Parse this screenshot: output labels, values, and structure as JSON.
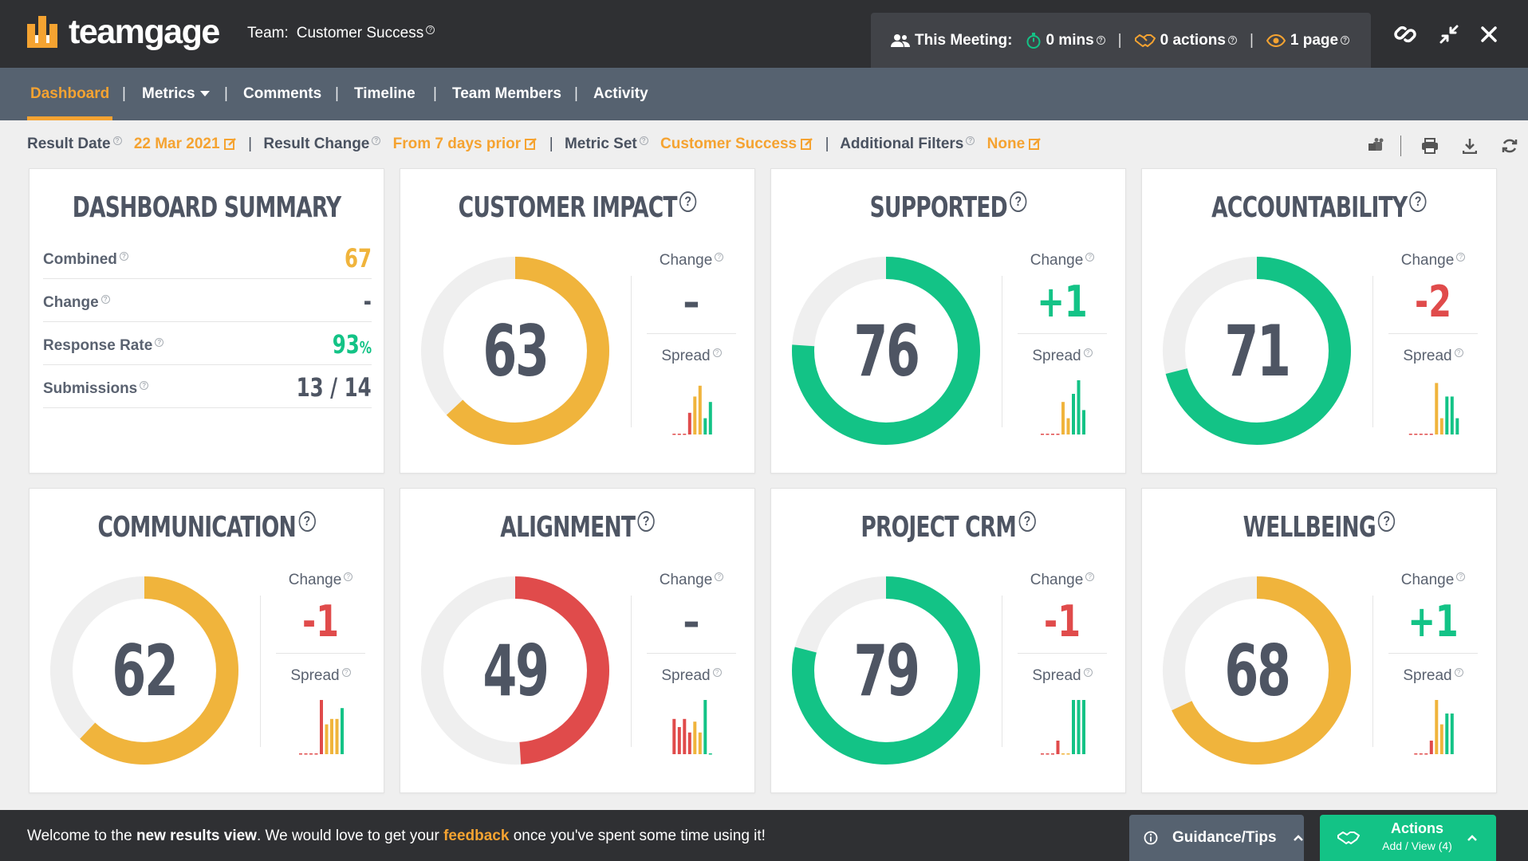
{
  "header": {
    "logo_text": "teamgage",
    "team_label": "Team:",
    "team_name": "Customer Success",
    "meeting": {
      "label": "This Meeting:",
      "mins": "0 mins",
      "actions": "0 actions",
      "pages": "1 page"
    }
  },
  "nav": {
    "tabs": [
      "Dashboard",
      "Metrics",
      "Comments",
      "Timeline",
      "Team Members",
      "Activity"
    ],
    "active": "Dashboard"
  },
  "filters": {
    "result_date_label": "Result Date",
    "result_date_value": "22 Mar 2021",
    "result_change_label": "Result Change",
    "result_change_value": "From 7 days prior",
    "metric_set_label": "Metric Set",
    "metric_set_value": "Customer Success",
    "additional_filters_label": "Additional Filters",
    "additional_filters_value": "None"
  },
  "summary": {
    "title": "DASHBOARD SUMMARY",
    "rows": [
      {
        "label": "Combined",
        "value": "67",
        "color": "#f0b43c"
      },
      {
        "label": "Change",
        "value": "-",
        "color": "#4e5563"
      },
      {
        "label": "Response Rate",
        "value": "93",
        "unit": "%",
        "color": "#13c386"
      },
      {
        "label": "Submissions",
        "value": "13 / 14",
        "color": "#4e5563"
      }
    ]
  },
  "labels": {
    "change": "Change",
    "spread": "Spread"
  },
  "metrics": [
    {
      "title": "CUSTOMER IMPACT",
      "score": 63,
      "change": "–",
      "color": "#f0b43c",
      "change_color": "#4e5563",
      "spread": [
        {
          "v": 0.0,
          "c": "#e04b4b"
        },
        {
          "v": 0.0,
          "c": "#e04b4b"
        },
        {
          "v": 0.0,
          "c": "#e04b4b"
        },
        {
          "v": 0.4,
          "c": "#e04b4b"
        },
        {
          "v": 0.7,
          "c": "#f0b43c"
        },
        {
          "v": 0.9,
          "c": "#f0b43c"
        },
        {
          "v": 0.3,
          "c": "#13c386"
        },
        {
          "v": 0.6,
          "c": "#13c386"
        }
      ]
    },
    {
      "title": "SUPPORTED",
      "score": 76,
      "change": "+1",
      "color": "#13c386",
      "change_color": "#13c386",
      "spread": [
        {
          "v": 0.0,
          "c": "#e04b4b"
        },
        {
          "v": 0.0,
          "c": "#e04b4b"
        },
        {
          "v": 0.0,
          "c": "#e04b4b"
        },
        {
          "v": 0.0,
          "c": "#e04b4b"
        },
        {
          "v": 0.6,
          "c": "#f0b43c"
        },
        {
          "v": 0.3,
          "c": "#f0b43c"
        },
        {
          "v": 0.75,
          "c": "#13c386"
        },
        {
          "v": 1.0,
          "c": "#13c386"
        },
        {
          "v": 0.45,
          "c": "#13c386"
        }
      ]
    },
    {
      "title": "ACCOUNTABILITY",
      "score": 71,
      "change": "-2",
      "color": "#13c386",
      "change_color": "#e04b4b",
      "spread": [
        {
          "v": 0.0,
          "c": "#e04b4b"
        },
        {
          "v": 0.0,
          "c": "#e04b4b"
        },
        {
          "v": 0.0,
          "c": "#e04b4b"
        },
        {
          "v": 0.0,
          "c": "#e04b4b"
        },
        {
          "v": 0.0,
          "c": "#e04b4b"
        },
        {
          "v": 0.95,
          "c": "#f0b43c"
        },
        {
          "v": 0.3,
          "c": "#f0b43c"
        },
        {
          "v": 0.7,
          "c": "#13c386"
        },
        {
          "v": 0.7,
          "c": "#13c386"
        },
        {
          "v": 0.3,
          "c": "#13c386"
        }
      ]
    },
    {
      "title": "COMMUNICATION",
      "score": 62,
      "change": "-1",
      "color": "#f0b43c",
      "change_color": "#e04b4b",
      "spread": [
        {
          "v": 0.0,
          "c": "#e04b4b"
        },
        {
          "v": 0.0,
          "c": "#e04b4b"
        },
        {
          "v": 0.0,
          "c": "#e04b4b"
        },
        {
          "v": 0.0,
          "c": "#e04b4b"
        },
        {
          "v": 1.0,
          "c": "#e04b4b"
        },
        {
          "v": 0.55,
          "c": "#f0b43c"
        },
        {
          "v": 0.65,
          "c": "#f0b43c"
        },
        {
          "v": 0.65,
          "c": "#f0b43c"
        },
        {
          "v": 0.85,
          "c": "#13c386"
        }
      ]
    },
    {
      "title": "ALIGNMENT",
      "score": 49,
      "change": "–",
      "color": "#e04b4b",
      "change_color": "#4e5563",
      "spread": [
        {
          "v": 0.65,
          "c": "#e04b4b"
        },
        {
          "v": 0.5,
          "c": "#e04b4b"
        },
        {
          "v": 0.65,
          "c": "#e04b4b"
        },
        {
          "v": 0.4,
          "c": "#e04b4b"
        },
        {
          "v": 0.6,
          "c": "#f0b43c"
        },
        {
          "v": 0.4,
          "c": "#f0b43c"
        },
        {
          "v": 1.0,
          "c": "#13c386"
        },
        {
          "v": 0.0,
          "c": "#13c386"
        }
      ]
    },
    {
      "title": "PROJECT CRM",
      "score": 79,
      "change": "-1",
      "color": "#13c386",
      "change_color": "#e04b4b",
      "spread": [
        {
          "v": 0.0,
          "c": "#e04b4b"
        },
        {
          "v": 0.0,
          "c": "#e04b4b"
        },
        {
          "v": 0.0,
          "c": "#e04b4b"
        },
        {
          "v": 0.25,
          "c": "#e04b4b"
        },
        {
          "v": 0.0,
          "c": "#f0b43c"
        },
        {
          "v": 0.0,
          "c": "#f0b43c"
        },
        {
          "v": 1.0,
          "c": "#13c386"
        },
        {
          "v": 1.0,
          "c": "#13c386"
        },
        {
          "v": 1.0,
          "c": "#13c386"
        }
      ]
    },
    {
      "title": "WELLBEING",
      "score": 68,
      "change": "+1",
      "color": "#f0b43c",
      "change_color": "#13c386",
      "spread": [
        {
          "v": 0.0,
          "c": "#e04b4b"
        },
        {
          "v": 0.0,
          "c": "#e04b4b"
        },
        {
          "v": 0.0,
          "c": "#e04b4b"
        },
        {
          "v": 0.25,
          "c": "#e04b4b"
        },
        {
          "v": 1.0,
          "c": "#f0b43c"
        },
        {
          "v": 0.55,
          "c": "#f0b43c"
        },
        {
          "v": 0.75,
          "c": "#13c386"
        },
        {
          "v": 0.75,
          "c": "#13c386"
        }
      ]
    }
  ],
  "footer": {
    "welcome_pre": "Welcome to the ",
    "welcome_bold": "new results view",
    "welcome_mid": ". We would love to get your ",
    "welcome_link": "feedback",
    "welcome_post": " once you've spent some time using it!",
    "guidance": "Guidance/Tips",
    "actions_title": "Actions",
    "actions_sub": "Add / View (4)"
  },
  "colors": {
    "accent": "#f5a331",
    "green": "#13c386",
    "red": "#e04b4b",
    "yellow": "#f0b43c",
    "nav": "#566270",
    "header": "#2f3033"
  }
}
